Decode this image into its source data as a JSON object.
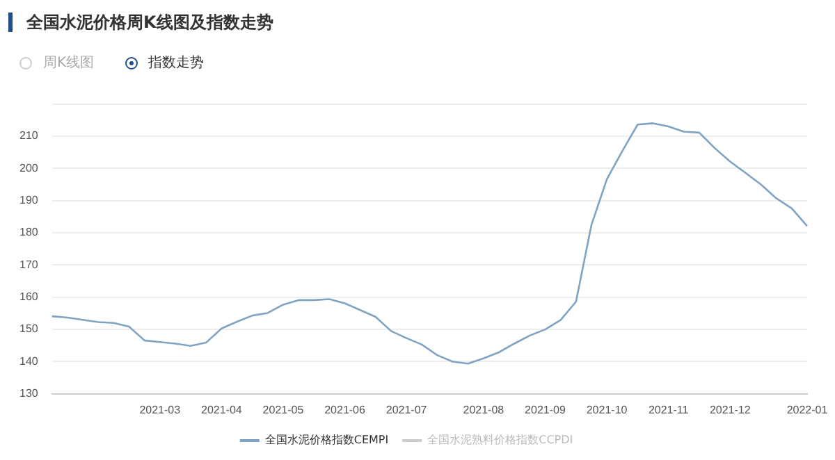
{
  "chart_data": {
    "type": "line",
    "title": "全国水泥价格周K线图及指数走势",
    "annotations": [
      "周K线图",
      "指数走势"
    ],
    "categories": [
      null,
      null,
      null,
      null,
      null,
      null,
      null,
      "2021-03",
      null,
      null,
      null,
      "2021-04",
      null,
      null,
      null,
      "2021-05",
      null,
      null,
      null,
      "2021-06",
      null,
      null,
      null,
      "2021-07",
      null,
      null,
      null,
      null,
      "2021-08",
      null,
      null,
      null,
      "2021-09",
      null,
      null,
      null,
      "2021-10",
      null,
      null,
      null,
      "2021-11",
      null,
      null,
      null,
      "2021-12",
      null,
      null,
      null,
      null,
      "2022-01"
    ],
    "series": [
      {
        "name": "全国水泥价格指数CEMPI",
        "color": "#7ea3c3",
        "values": [
          154.1,
          153.7,
          153,
          152.3,
          152,
          150.9,
          146.6,
          146.1,
          145.6,
          144.9,
          145.9,
          150.3,
          152.4,
          154.3,
          155.1,
          157.7,
          159.1,
          159.1,
          159.4,
          158.1,
          156,
          153.9,
          149.5,
          147.3,
          145.3,
          142,
          140,
          139.4,
          141,
          142.9,
          145.6,
          148.1,
          150,
          152.9,
          158.6,
          182.4,
          196.6,
          205.3,
          213.6,
          214,
          213,
          211.4,
          211.1,
          206.3,
          202.1,
          198.6,
          195,
          190.7,
          187.6,
          182.1
        ]
      },
      {
        "name": "全国水泥熟料价格指数CCPDI",
        "color": "#cccccc",
        "values": [
          null,
          null,
          null,
          null,
          null,
          null,
          null,
          null,
          null,
          null,
          null,
          null,
          null,
          null,
          null,
          null,
          null,
          null,
          null,
          null,
          null,
          null,
          null,
          null,
          null,
          null,
          null,
          null,
          null,
          null,
          null,
          null,
          null,
          null,
          null,
          null,
          null,
          null,
          null,
          null,
          null,
          null,
          null,
          null,
          null,
          null,
          null,
          null,
          null,
          null
        ]
      }
    ],
    "ylim": [
      130,
      220
    ],
    "yticks": [
      130,
      140,
      150,
      160,
      170,
      180,
      190,
      200,
      210,
      {
        "value": 220,
        "label": null
      }
    ],
    "grid": "y",
    "legend": "bottom",
    "marker": "none",
    "line_style": "solid"
  }
}
